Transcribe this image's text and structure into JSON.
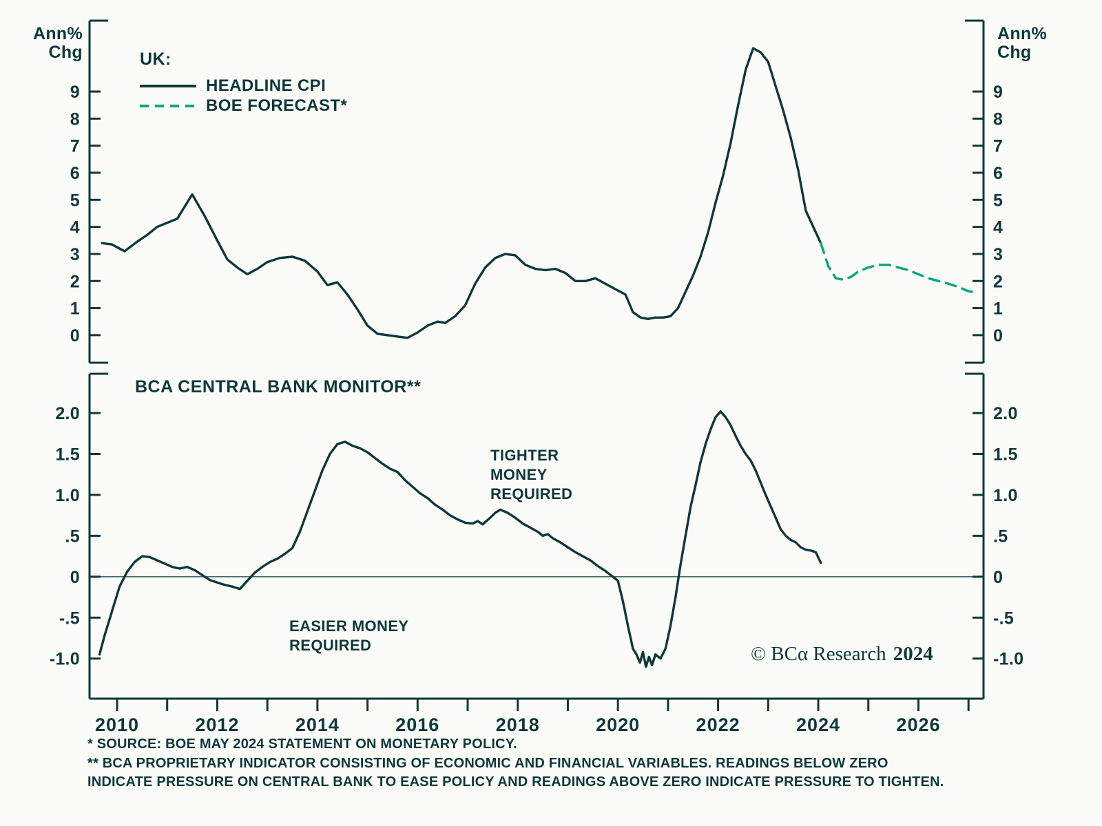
{
  "colors": {
    "frame": "#0d383c",
    "line_dark": "#0d383c",
    "forecast_green": "#00a77a",
    "background": "#fbfbf7"
  },
  "labels": {
    "ann_chg_left": "Ann%\nChg",
    "ann_chg_right": "Ann%\nChg"
  },
  "legend": {
    "heading": "UK:",
    "items": [
      {
        "label": "HEADLINE CPI",
        "style": "solid",
        "color": "#0d383c"
      },
      {
        "label": "BOE FORECAST*",
        "style": "dashed",
        "color": "#00a77a"
      }
    ]
  },
  "copyright": {
    "text": "© BCα Research",
    "year": "2024"
  },
  "footnotes": {
    "f1": "* SOURCE: BOE MAY 2024 STATEMENT ON MONETARY POLICY.",
    "f2": "** BCA PROPRIETARY INDICATOR CONSISTING OF ECONOMIC AND FINANCIAL VARIABLES. READINGS BELOW ZERO\nINDICATE PRESSURE ON CENTRAL BANK TO EASE POLICY AND READINGS ABOVE ZERO INDICATE PRESSURE TO TIGHTEN."
  },
  "chart_data": [
    {
      "type": "line",
      "panel": "top",
      "title": "UK:",
      "ylabel": "Ann% Chg",
      "ylim": [
        -1.02,
        11.62
      ],
      "grid": false,
      "legend_position": "top-left",
      "yticks": [
        {
          "v": 0,
          "label": "0"
        },
        {
          "v": 1,
          "label": "1"
        },
        {
          "v": 2,
          "label": "2"
        },
        {
          "v": 3,
          "label": "3"
        },
        {
          "v": 4,
          "label": "4"
        },
        {
          "v": 5,
          "label": "5"
        },
        {
          "v": 6,
          "label": "6"
        },
        {
          "v": 7,
          "label": "7"
        },
        {
          "v": 8,
          "label": "8"
        },
        {
          "v": 9,
          "label": "9"
        }
      ],
      "series": [
        {
          "name": "HEADLINE CPI",
          "style": "solid",
          "color": "#0d383c",
          "x": [
            2009.7,
            2009.9,
            2010.15,
            2010.4,
            2010.6,
            2010.8,
            2011.0,
            2011.2,
            2011.5,
            2011.75,
            2012.0,
            2012.2,
            2012.4,
            2012.6,
            2012.8,
            2013.0,
            2013.25,
            2013.5,
            2013.75,
            2014.0,
            2014.2,
            2014.4,
            2014.6,
            2014.8,
            2015.0,
            2015.2,
            2015.4,
            2015.6,
            2015.8,
            2016.0,
            2016.2,
            2016.4,
            2016.55,
            2016.75,
            2016.95,
            2017.15,
            2017.35,
            2017.55,
            2017.75,
            2017.95,
            2018.15,
            2018.35,
            2018.55,
            2018.75,
            2018.95,
            2019.15,
            2019.35,
            2019.55,
            2019.75,
            2019.95,
            2020.15,
            2020.3,
            2020.45,
            2020.6,
            2020.75,
            2020.9,
            2021.05,
            2021.2,
            2021.35,
            2021.5,
            2021.65,
            2021.8,
            2021.95,
            2022.1,
            2022.25,
            2022.4,
            2022.55,
            2022.7,
            2022.85,
            2023.0,
            2023.15,
            2023.3,
            2023.45,
            2023.6,
            2023.75,
            2023.9,
            2024.05
          ],
          "y": [
            3.4,
            3.35,
            3.1,
            3.45,
            3.7,
            4.0,
            4.15,
            4.3,
            5.2,
            4.4,
            3.5,
            2.8,
            2.5,
            2.25,
            2.45,
            2.7,
            2.85,
            2.9,
            2.75,
            2.35,
            1.85,
            1.95,
            1.5,
            0.95,
            0.35,
            0.05,
            0.0,
            -0.05,
            -0.1,
            0.1,
            0.35,
            0.5,
            0.45,
            0.7,
            1.1,
            1.9,
            2.5,
            2.85,
            3.0,
            2.95,
            2.6,
            2.45,
            2.4,
            2.45,
            2.3,
            2.0,
            2.0,
            2.1,
            1.9,
            1.7,
            1.5,
            0.85,
            0.65,
            0.6,
            0.65,
            0.65,
            0.7,
            1.0,
            1.6,
            2.2,
            2.9,
            3.8,
            4.9,
            5.9,
            7.1,
            8.5,
            9.8,
            10.6,
            10.45,
            10.1,
            9.2,
            8.3,
            7.3,
            6.1,
            4.6,
            4.0,
            3.4
          ]
        },
        {
          "name": "BOE FORECAST",
          "style": "dashed",
          "color": "#00a77a",
          "x": [
            2024.05,
            2024.2,
            2024.35,
            2024.5,
            2024.65,
            2024.8,
            2025.0,
            2025.2,
            2025.4,
            2025.6,
            2025.8,
            2026.0,
            2026.2,
            2026.4,
            2026.6,
            2026.8,
            2027.0,
            2027.1
          ],
          "y": [
            3.4,
            2.55,
            2.1,
            2.05,
            2.15,
            2.35,
            2.5,
            2.6,
            2.6,
            2.5,
            2.4,
            2.25,
            2.1,
            2.0,
            1.9,
            1.78,
            1.62,
            1.6
          ]
        }
      ]
    },
    {
      "type": "line",
      "panel": "bottom",
      "title": "BCA CENTRAL BANK MONITOR**",
      "ylim": [
        -1.49,
        2.48
      ],
      "xlim": [
        2009.45,
        2027.3
      ],
      "grid": false,
      "zero_line": true,
      "yticks": [
        {
          "v": -1.0,
          "label": "-1.0"
        },
        {
          "v": -0.5,
          "label": "-.5"
        },
        {
          "v": 0,
          "label": "0"
        },
        {
          "v": 0.5,
          "label": ".5"
        },
        {
          "v": 1.0,
          "label": "1.0"
        },
        {
          "v": 1.5,
          "label": "1.5"
        },
        {
          "v": 2.0,
          "label": "2.0"
        }
      ],
      "xticks_years": [
        2010,
        2011,
        2012,
        2013,
        2014,
        2015,
        2016,
        2017,
        2018,
        2019,
        2020,
        2021,
        2022,
        2023,
        2024,
        2025,
        2026,
        2027
      ],
      "xtick_labels": [
        {
          "v": 2010,
          "label": "2010"
        },
        {
          "v": 2012,
          "label": "2012"
        },
        {
          "v": 2014,
          "label": "2014"
        },
        {
          "v": 2016,
          "label": "2016"
        },
        {
          "v": 2018,
          "label": "2018"
        },
        {
          "v": 2020,
          "label": "2020"
        },
        {
          "v": 2022,
          "label": "2022"
        },
        {
          "v": 2024,
          "label": "2024"
        },
        {
          "v": 2026,
          "label": "2026"
        }
      ],
      "annotations": [
        {
          "id": "tighter",
          "text": "TIGHTER\nMONEY\nREQUIRED"
        },
        {
          "id": "easier",
          "text": "EASIER MONEY\nREQUIRED"
        }
      ],
      "series": [
        {
          "name": "BCA CENTRAL BANK MONITOR",
          "style": "solid",
          "color": "#0d383c",
          "x": [
            2009.65,
            2009.75,
            2009.9,
            2010.05,
            2010.2,
            2010.35,
            2010.5,
            2010.65,
            2010.8,
            2010.95,
            2011.1,
            2011.25,
            2011.4,
            2011.55,
            2011.7,
            2011.85,
            2012.0,
            2012.15,
            2012.3,
            2012.45,
            2012.6,
            2012.75,
            2012.9,
            2013.05,
            2013.2,
            2013.35,
            2013.5,
            2013.65,
            2013.8,
            2013.95,
            2014.1,
            2014.25,
            2014.4,
            2014.55,
            2014.7,
            2014.85,
            2015.0,
            2015.15,
            2015.3,
            2015.45,
            2015.6,
            2015.75,
            2015.9,
            2016.05,
            2016.2,
            2016.35,
            2016.5,
            2016.65,
            2016.8,
            2016.95,
            2017.1,
            2017.2,
            2017.3,
            2017.45,
            2017.55,
            2017.65,
            2017.8,
            2017.95,
            2018.1,
            2018.25,
            2018.4,
            2018.5,
            2018.6,
            2018.7,
            2018.85,
            2019.0,
            2019.15,
            2019.3,
            2019.45,
            2019.6,
            2019.75,
            2019.9,
            2020.0,
            2020.1,
            2020.2,
            2020.3,
            2020.37,
            2020.44,
            2020.5,
            2020.56,
            2020.62,
            2020.68,
            2020.75,
            2020.85,
            2020.95,
            2021.05,
            2021.15,
            2021.25,
            2021.35,
            2021.45,
            2021.55,
            2021.65,
            2021.75,
            2021.85,
            2021.95,
            2022.05,
            2022.15,
            2022.25,
            2022.35,
            2022.45,
            2022.55,
            2022.65,
            2022.75,
            2022.85,
            2022.95,
            2023.05,
            2023.15,
            2023.25,
            2023.35,
            2023.45,
            2023.55,
            2023.65,
            2023.75,
            2023.85,
            2023.95,
            2024.05
          ],
          "y": [
            -0.95,
            -0.72,
            -0.42,
            -0.12,
            0.06,
            0.18,
            0.25,
            0.24,
            0.2,
            0.16,
            0.12,
            0.1,
            0.12,
            0.08,
            0.02,
            -0.04,
            -0.07,
            -0.1,
            -0.12,
            -0.15,
            -0.05,
            0.05,
            0.12,
            0.18,
            0.22,
            0.28,
            0.35,
            0.55,
            0.8,
            1.05,
            1.3,
            1.5,
            1.62,
            1.65,
            1.6,
            1.57,
            1.52,
            1.45,
            1.38,
            1.32,
            1.28,
            1.18,
            1.1,
            1.02,
            0.96,
            0.88,
            0.82,
            0.75,
            0.7,
            0.66,
            0.65,
            0.68,
            0.64,
            0.72,
            0.78,
            0.82,
            0.78,
            0.72,
            0.65,
            0.6,
            0.55,
            0.5,
            0.52,
            0.47,
            0.42,
            0.36,
            0.3,
            0.25,
            0.2,
            0.13,
            0.07,
            0.0,
            -0.05,
            -0.3,
            -0.6,
            -0.88,
            -0.95,
            -1.05,
            -0.92,
            -1.1,
            -0.98,
            -1.08,
            -0.95,
            -1.0,
            -0.88,
            -0.6,
            -0.25,
            0.15,
            0.5,
            0.85,
            1.12,
            1.4,
            1.62,
            1.8,
            1.95,
            2.02,
            1.95,
            1.85,
            1.72,
            1.6,
            1.5,
            1.42,
            1.3,
            1.15,
            1.0,
            0.86,
            0.72,
            0.58,
            0.5,
            0.45,
            0.42,
            0.36,
            0.33,
            0.32,
            0.3,
            0.17
          ]
        }
      ]
    }
  ]
}
